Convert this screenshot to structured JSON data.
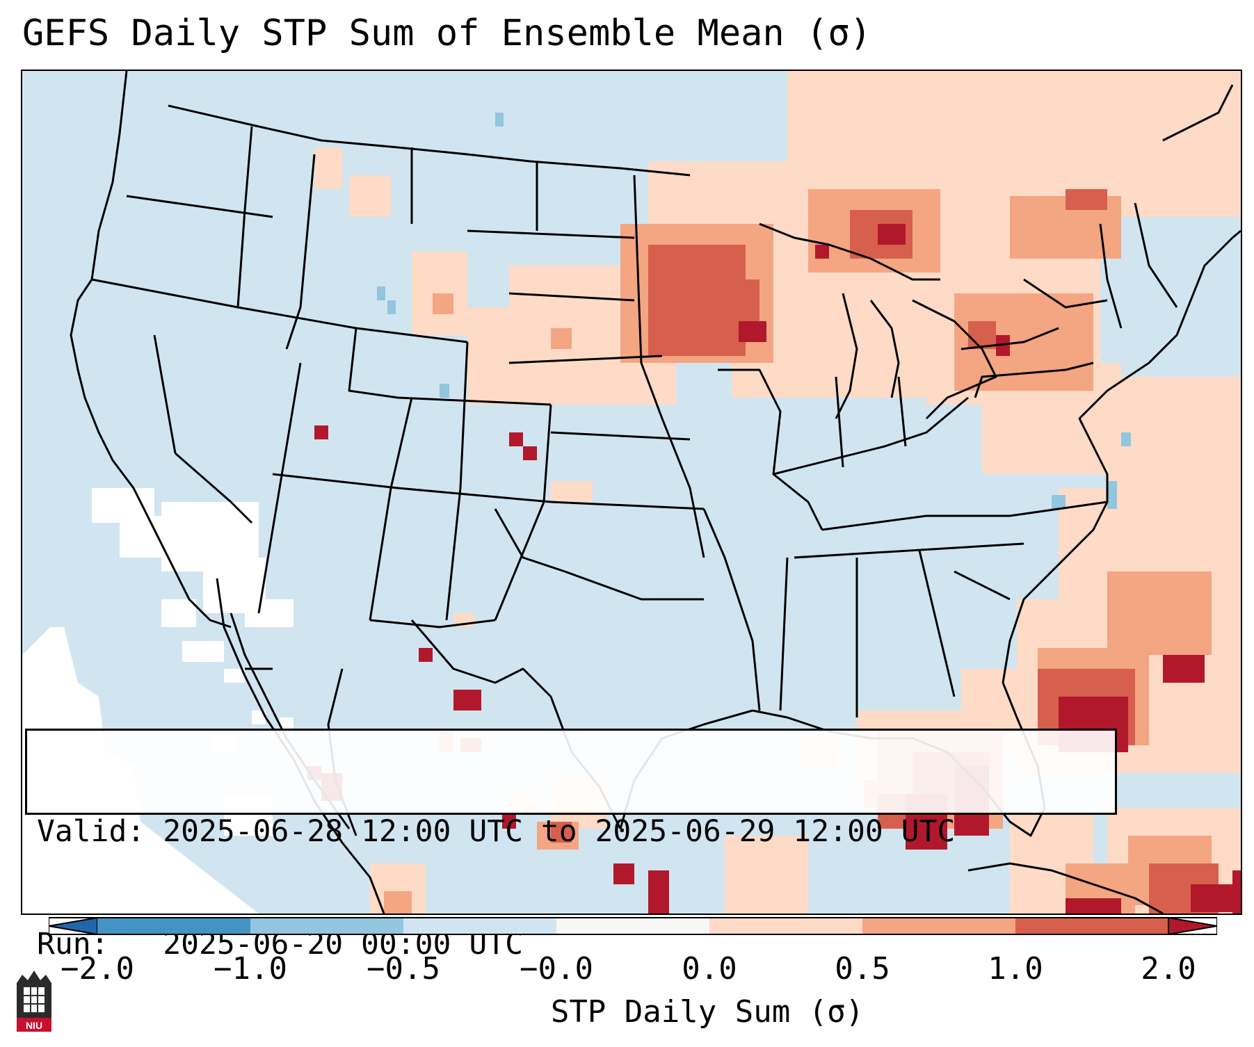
{
  "title": "GEFS Daily STP Sum of Ensemble Mean (σ)",
  "info": {
    "valid_line": "Valid: 2025-06-28 12:00 UTC to 2025-06-29 12:00 UTC",
    "run_line": "Run:   2025-06-20 00:00 UTC"
  },
  "colorbar": {
    "label": "STP Daily Sum (σ)",
    "ticks": [
      "−2.0",
      "−1.0",
      "−0.5",
      "−0.0",
      "0.0",
      "0.5",
      "1.0",
      "2.0"
    ],
    "colors": [
      "#2166ac",
      "#4393c3",
      "#92c5de",
      "#d1e5f0",
      "#f7f7f7",
      "#fddbc7",
      "#f4a582",
      "#d6604d",
      "#b2182b"
    ]
  },
  "logo": {
    "text": "NIU",
    "icon": "niu-logo-icon",
    "color": "#c8102e"
  },
  "map": {
    "background_color": "#d1e5f0",
    "ocean_white_color": "#ffffff",
    "border_color": "#000000"
  }
}
